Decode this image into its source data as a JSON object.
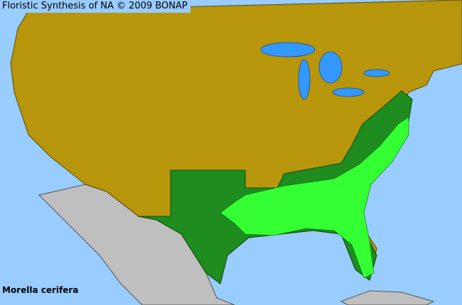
{
  "header": {
    "title": "Floristic Synthesis of NA © 2009 BONAP"
  },
  "map": {
    "species": "Morella cerifera",
    "colors": {
      "water": "#99ccff",
      "lakes": "#3399ff",
      "absent": "#b8960c",
      "present_in_state": "#1e8c1e",
      "present_in_county": "#33ff33",
      "outside_region": "#bfbfbf",
      "county_lines": "#5a4a00"
    }
  }
}
